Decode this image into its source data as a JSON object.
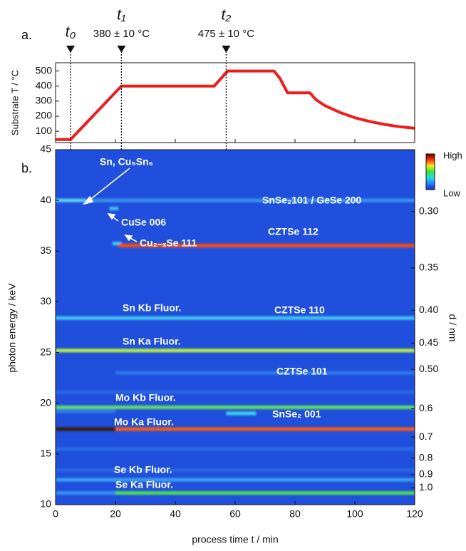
{
  "chart_data": [
    {
      "type": "line",
      "panel_label": "a.",
      "ylabel": "Substrate T / °C",
      "x": [
        0,
        5,
        22,
        53,
        57.5,
        73,
        75,
        77.5,
        85,
        87,
        90,
        95,
        100,
        105,
        110,
        115,
        120
      ],
      "series": [
        {
          "color": "#ee1c1c",
          "values": [
            45,
            45,
            400,
            400,
            500,
            500,
            450,
            355,
            355,
            310,
            270,
            225,
            190,
            165,
            145,
            130,
            120
          ]
        }
      ],
      "xlim": [
        0,
        120
      ],
      "xticks": [
        0,
        20,
        40,
        60,
        80,
        100,
        120
      ],
      "ylim": [
        25,
        555
      ],
      "yticks": [
        100,
        200,
        300,
        400,
        500
      ],
      "markers": [
        {
          "label": "t₀",
          "x": 5
        },
        {
          "label": "t₁",
          "sublabel": "380 ± 10 °C",
          "x": 22
        },
        {
          "label": "t₂",
          "sublabel": "475 ± 10 °C",
          "x": 57
        }
      ]
    },
    {
      "type": "heatmap",
      "panel_label": "b.",
      "xlabel": "process time t / min",
      "ylabel": "photon energy / keV",
      "y2label": "d / nm",
      "xlim": [
        0,
        120
      ],
      "xticks": [
        0,
        20,
        40,
        60,
        80,
        100,
        120
      ],
      "ylim": [
        10,
        45
      ],
      "yticks": [
        10,
        15,
        20,
        25,
        30,
        35,
        40,
        45
      ],
      "y2scale": "reciprocal",
      "y2lim": [
        1.167,
        0.2593
      ],
      "y2ticks": [
        {
          "value": 0.3,
          "label": "0.30"
        },
        0.35,
        {
          "value": 0.4,
          "label": "0.40"
        },
        0.45,
        {
          "value": 0.5,
          "label": "0.50"
        },
        0.6,
        0.7,
        0.8,
        0.9,
        {
          "value": 1,
          "label": "1.0"
        }
      ],
      "background": "#1f4fdc",
      "bands": [
        {
          "energy": 15.5,
          "x": [
            0,
            120
          ],
          "color": "#2c6ce8"
        },
        {
          "energy": 13.4,
          "x": [
            0,
            120
          ],
          "color": "#2a66e6"
        },
        {
          "energy": 21.1,
          "x": [
            0,
            120
          ],
          "color": "#2a66e6"
        },
        {
          "energy": 23.0,
          "x": [
            20,
            120
          ],
          "color": "#2f78ee"
        },
        {
          "energy": 19.2,
          "x": [
            0,
            20
          ],
          "color": "#2f78ee"
        },
        {
          "energy": 40.0,
          "x": [
            0,
            10
          ],
          "color": "#5ad0f0"
        },
        {
          "energy": 40.0,
          "x": [
            10,
            120
          ],
          "color": "#3a90f0"
        },
        {
          "energy": 39.2,
          "x": [
            18,
            21
          ],
          "color": "#4ab8f0"
        },
        {
          "energy": 35.75,
          "x": [
            19,
            22
          ],
          "color": "#40c8f0"
        },
        {
          "energy": 35.55,
          "x": [
            21,
            120
          ],
          "color": "#ff4a10"
        },
        {
          "energy": 28.4,
          "x": [
            0,
            120
          ],
          "color": "#3fc8f0"
        },
        {
          "energy": 25.2,
          "x": [
            0,
            120
          ],
          "color": "#b8f040"
        },
        {
          "energy": 19.6,
          "x": [
            0,
            120
          ],
          "color": "#60e060"
        },
        {
          "energy": 19.0,
          "x": [
            57,
            67
          ],
          "color": "#40d0f0"
        },
        {
          "energy": 17.45,
          "x": [
            0,
            20
          ],
          "color": "#3a1a00"
        },
        {
          "energy": 17.45,
          "x": [
            20,
            120
          ],
          "color": "#ff5a10"
        },
        {
          "energy": 12.45,
          "x": [
            0,
            120
          ],
          "color": "#3aa0f5"
        },
        {
          "energy": 11.15,
          "x": [
            0,
            20
          ],
          "color": "#3a8ff0"
        },
        {
          "energy": 11.15,
          "x": [
            20,
            120
          ],
          "color": "#50e050"
        }
      ],
      "annotations": [
        "Sn, Cu₅Sn₆",
        "SnSe₂101 / GeSe 200",
        "CuSe 006",
        "CZTSe 112",
        "Cu₂₋ₓSe 111",
        "Sn Kb Fluor.",
        "CZTSe 110",
        "Sn Ka Fluor.",
        "CZTSe 101",
        "Mo Kb Fluor.",
        "Mo Ka Fluor.",
        "SnSe₂ 001",
        "Se Kb Fluor.",
        "Se Ka Fluor."
      ],
      "colorbar": {
        "high": "High",
        "low": "Low",
        "colors": [
          "#1030c0",
          "#2080ff",
          "#20e0e0",
          "#40e040",
          "#f0f020",
          "#ff3010",
          "#600000"
        ]
      }
    }
  ]
}
